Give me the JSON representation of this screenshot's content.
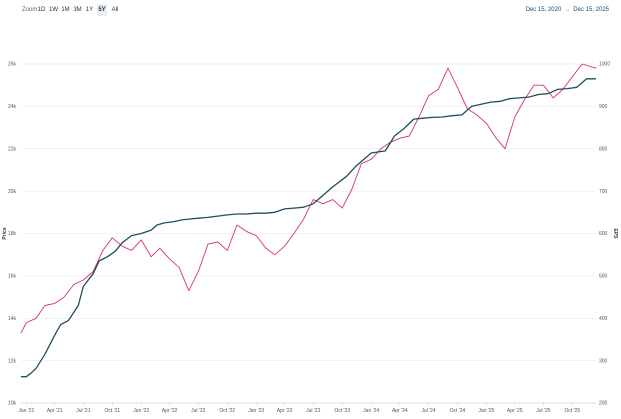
{
  "toolbar": {
    "zoom_label": "Zoom",
    "zoom_buttons": [
      "1D",
      "1W",
      "1M",
      "3M",
      "1Y",
      "5Y",
      "All"
    ],
    "active_zoom": "5Y",
    "range_from": "Dec 15, 2020",
    "range_arrow": "→",
    "range_to": "Dec 15, 2025"
  },
  "chart_data": {
    "type": "line",
    "title": "",
    "xlabel": "",
    "left_axis": {
      "label": "Price",
      "ticks": [
        "10k",
        "12k",
        "14k",
        "16k",
        "18k",
        "20k",
        "22k",
        "24k",
        "26k"
      ],
      "range": [
        10000,
        26000
      ]
    },
    "right_axis": {
      "label": "EPS",
      "ticks": [
        "200",
        "300",
        "400",
        "500",
        "600",
        "700",
        "800",
        "900",
        "1000"
      ],
      "range": [
        200,
        1000
      ]
    },
    "x_ticks": [
      "Jan '21",
      "Apr '21",
      "Jul '21",
      "Oct '21",
      "Jan '22",
      "Apr '22",
      "Jul '22",
      "Oct '22",
      "Jan '23",
      "Apr '23",
      "Jul '23",
      "Oct '23",
      "Jan '24",
      "Apr '24",
      "Jul '24",
      "Oct '24",
      "Jan '25",
      "Apr '25",
      "Jul '25",
      "Oct '25"
    ],
    "grid": "horizontal",
    "colors": {
      "price": "#d6336c",
      "eps": "#1f4e5f"
    },
    "series": [
      {
        "key": "price",
        "axis": "left",
        "x": [
          "2020-12-15",
          "2021-01-01",
          "2021-02-01",
          "2021-03-01",
          "2021-04-01",
          "2021-05-01",
          "2021-06-01",
          "2021-07-01",
          "2021-08-01",
          "2021-09-01",
          "2021-10-01",
          "2021-11-01",
          "2021-12-01",
          "2022-01-01",
          "2022-02-01",
          "2022-03-01",
          "2022-04-01",
          "2022-05-01",
          "2022-06-01",
          "2022-07-01",
          "2022-08-01",
          "2022-09-01",
          "2022-10-01",
          "2022-11-01",
          "2022-12-01",
          "2023-01-01",
          "2023-02-01",
          "2023-03-01",
          "2023-04-01",
          "2023-05-01",
          "2023-06-01",
          "2023-07-01",
          "2023-08-01",
          "2023-09-01",
          "2023-10-01",
          "2023-11-01",
          "2023-12-01",
          "2024-01-01",
          "2024-02-01",
          "2024-03-01",
          "2024-04-01",
          "2024-05-01",
          "2024-06-01",
          "2024-07-01",
          "2024-08-01",
          "2024-09-01",
          "2024-10-01",
          "2024-11-01",
          "2024-12-01",
          "2025-01-01",
          "2025-02-01",
          "2025-03-01",
          "2025-04-01",
          "2025-05-01",
          "2025-06-01",
          "2025-07-01",
          "2025-08-01",
          "2025-09-01",
          "2025-10-01",
          "2025-11-01",
          "2025-12-15"
        ],
        "y": [
          13300,
          13800,
          14000,
          14600,
          14700,
          15000,
          15600,
          15800,
          16200,
          17200,
          17800,
          17400,
          17200,
          17700,
          16900,
          17300,
          16800,
          16400,
          15300,
          16200,
          17500,
          17600,
          17200,
          18400,
          18100,
          17900,
          17300,
          17000,
          17400,
          18000,
          18700,
          19600,
          19400,
          19600,
          19200,
          20100,
          21300,
          21500,
          22000,
          22300,
          22500,
          22600,
          23500,
          24500,
          24800,
          25800,
          24900,
          23900,
          23600,
          23200,
          22500,
          22000,
          23500,
          24300,
          25000,
          25000,
          24400,
          24800,
          25400,
          26000,
          25800
        ]
      },
      {
        "key": "eps",
        "axis": "right",
        "x": [
          "2020-12-15",
          "2021-01-01",
          "2021-01-15",
          "2021-02-01",
          "2021-03-01",
          "2021-04-01",
          "2021-04-20",
          "2021-05-15",
          "2021-06-15",
          "2021-07-01",
          "2021-08-01",
          "2021-08-20",
          "2021-09-15",
          "2021-10-10",
          "2021-11-01",
          "2021-12-01",
          "2022-01-01",
          "2022-02-01",
          "2022-02-20",
          "2022-03-15",
          "2022-04-15",
          "2022-05-10",
          "2022-06-01",
          "2022-07-01",
          "2022-08-01",
          "2022-09-01",
          "2022-10-01",
          "2022-11-01",
          "2022-12-01",
          "2023-01-01",
          "2023-02-01",
          "2023-03-01",
          "2023-04-01",
          "2023-05-01",
          "2023-06-01",
          "2023-07-01",
          "2023-08-01",
          "2023-09-01",
          "2023-10-15",
          "2023-11-15",
          "2024-01-01",
          "2024-02-15",
          "2024-03-15",
          "2024-04-15",
          "2024-05-15",
          "2024-06-15",
          "2024-07-15",
          "2024-08-15",
          "2024-09-15",
          "2024-10-15",
          "2024-11-15",
          "2024-12-15",
          "2025-01-15",
          "2025-02-15",
          "2025-03-15",
          "2025-04-15",
          "2025-05-15",
          "2025-06-15",
          "2025-07-15",
          "2025-08-15",
          "2025-09-15",
          "2025-10-15",
          "2025-11-15",
          "2025-12-15"
        ],
        "y": [
          262,
          262,
          270,
          282,
          315,
          360,
          385,
          395,
          430,
          475,
          505,
          535,
          545,
          558,
          578,
          595,
          600,
          608,
          620,
          625,
          628,
          632,
          634,
          636,
          638,
          641,
          644,
          646,
          646,
          648,
          648,
          650,
          658,
          660,
          662,
          670,
          690,
          710,
          735,
          760,
          790,
          795,
          830,
          848,
          870,
          872,
          874,
          875,
          878,
          880,
          900,
          905,
          910,
          912,
          918,
          920,
          922,
          928,
          930,
          940,
          942,
          945,
          965,
          965
        ]
      }
    ]
  }
}
